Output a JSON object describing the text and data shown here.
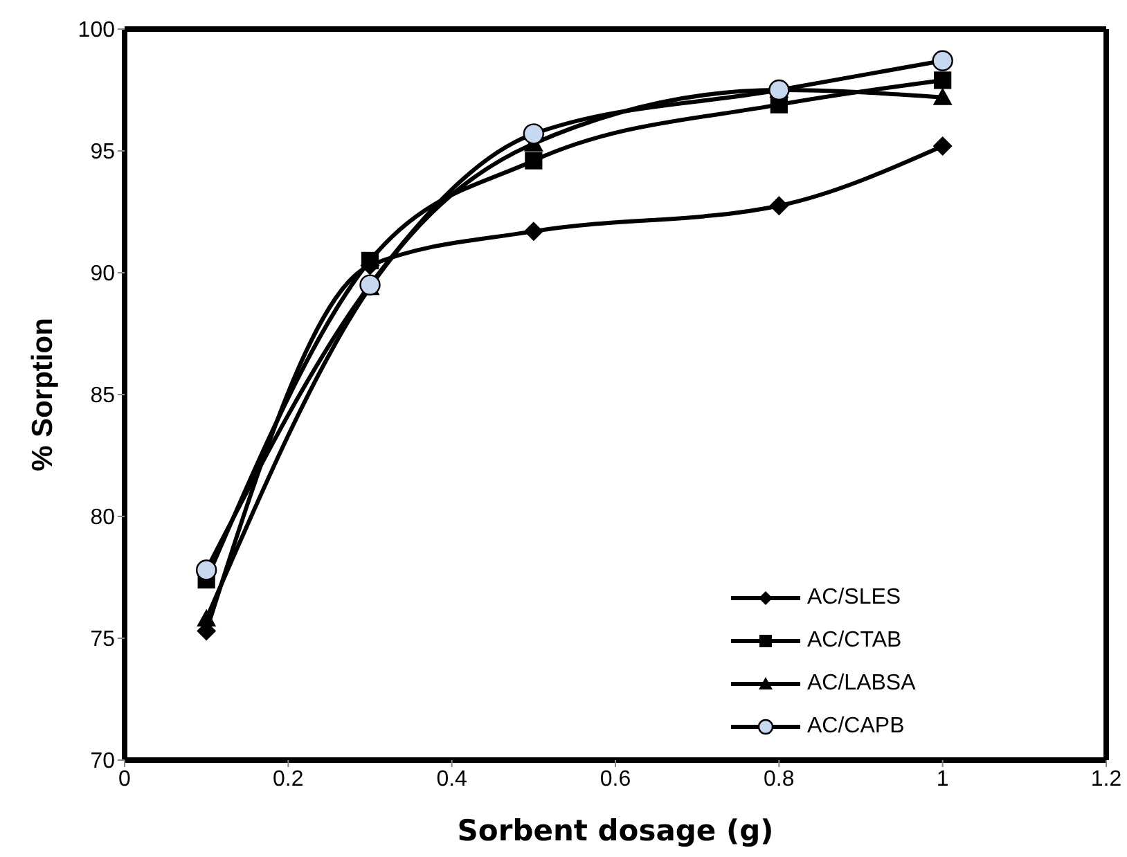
{
  "chart_data": {
    "type": "line",
    "xlabel": "Sorbent dosage (g)",
    "ylabel": "% Sorption",
    "x": [
      0.1,
      0.3,
      0.5,
      0.8,
      1
    ],
    "series": [
      {
        "name": "AC/SLES",
        "color": "#000000",
        "marker": "diamond",
        "values": [
          75.3,
          90.3,
          91.7,
          92.75,
          95.2
        ]
      },
      {
        "name": "AC/CTAB",
        "color": "#000000",
        "marker": "square",
        "values": [
          77.4,
          90.5,
          94.6,
          96.9,
          97.9
        ]
      },
      {
        "name": "AC/LABSA",
        "color": "#000000",
        "marker": "triangle",
        "values": [
          75.8,
          89.4,
          95.3,
          97.5,
          97.2
        ]
      },
      {
        "name": "AC/CAPB",
        "color": "#000000",
        "marker": "circle",
        "values": [
          77.8,
          89.5,
          95.7,
          97.5,
          98.7
        ]
      }
    ],
    "xlim": [
      0,
      1.2
    ],
    "xticks": [
      0,
      0.2,
      0.4,
      0.6,
      0.8,
      1,
      1.2
    ],
    "ylim": [
      70,
      100
    ],
    "yticks": [
      70,
      75,
      80,
      85,
      90,
      95,
      100
    ],
    "grid": false,
    "legend": "bottom right",
    "line_style": "solid"
  }
}
